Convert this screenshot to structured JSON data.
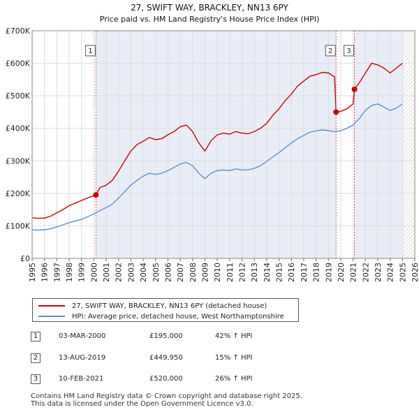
{
  "chart_data": {
    "type": "line",
    "title": "27, SWIFT WAY, BRACKLEY, NN13 6PY",
    "subtitle": "Price paid vs. HM Land Registry's House Price Index (HPI)",
    "xlim": [
      1995,
      2026
    ],
    "ylim": [
      0,
      700000
    ],
    "x_ticks": [
      "1995",
      "1996",
      "1997",
      "1998",
      "1999",
      "2000",
      "2001",
      "2002",
      "2003",
      "2004",
      "2005",
      "2006",
      "2007",
      "2008",
      "2009",
      "2010",
      "2011",
      "2012",
      "2013",
      "2014",
      "2015",
      "2016",
      "2017",
      "2018",
      "2019",
      "2020",
      "2021",
      "2022",
      "2023",
      "2024",
      "2025",
      "2026"
    ],
    "y_ticks": [
      {
        "value": 0,
        "label": "£0"
      },
      {
        "value": 100000,
        "label": "£100K"
      },
      {
        "value": 200000,
        "label": "£200K"
      },
      {
        "value": 300000,
        "label": "£300K"
      },
      {
        "value": 400000,
        "label": "£400K"
      },
      {
        "value": 500000,
        "label": "£500K"
      },
      {
        "value": 600000,
        "label": "£600K"
      },
      {
        "value": 700000,
        "label": "£700K"
      }
    ],
    "shaded_ranges": [
      [
        2000.17,
        2019.62
      ],
      [
        2021.11,
        2025.1
      ]
    ],
    "future_hatch_from": 2025.1,
    "series": [
      {
        "name": "27, SWIFT WAY, BRACKLEY, NN13 6PY (detached house)",
        "color": "#cc0000",
        "x": [
          1995.0,
          1995.5,
          1996.0,
          1996.5,
          1997.0,
          1997.5,
          1998.0,
          1998.5,
          1999.0,
          1999.5,
          2000.17,
          2000.5,
          2001.0,
          2001.5,
          2002.0,
          2002.5,
          2003.0,
          2003.5,
          2004.0,
          2004.5,
          2005.0,
          2005.5,
          2006.0,
          2006.5,
          2007.0,
          2007.5,
          2008.0,
          2008.5,
          2009.0,
          2009.5,
          2010.0,
          2010.5,
          2011.0,
          2011.5,
          2012.0,
          2012.5,
          2013.0,
          2013.5,
          2014.0,
          2014.5,
          2015.0,
          2015.5,
          2016.0,
          2016.5,
          2017.0,
          2017.5,
          2018.0,
          2018.5,
          2019.0,
          2019.5,
          2019.62,
          2020.0,
          2020.5,
          2021.0,
          2021.11,
          2021.5,
          2022.0,
          2022.5,
          2023.0,
          2023.5,
          2024.0,
          2024.5,
          2025.0
        ],
        "values": [
          125000,
          123000,
          124000,
          130000,
          140000,
          150000,
          162000,
          170000,
          178000,
          186000,
          195000,
          218000,
          225000,
          240000,
          268000,
          300000,
          330000,
          350000,
          360000,
          372000,
          365000,
          368000,
          380000,
          390000,
          405000,
          410000,
          390000,
          355000,
          330000,
          362000,
          380000,
          385000,
          382000,
          390000,
          385000,
          383000,
          390000,
          400000,
          415000,
          440000,
          460000,
          485000,
          505000,
          530000,
          545000,
          560000,
          565000,
          572000,
          570000,
          558000,
          449950,
          452000,
          460000,
          475000,
          520000,
          540000,
          570000,
          600000,
          595000,
          585000,
          570000,
          585000,
          600000
        ]
      },
      {
        "name": "HPI: Average price, detached house, West Northamptonshire",
        "color": "#5b8fc9",
        "x": [
          1995.0,
          1995.5,
          1996.0,
          1996.5,
          1997.0,
          1997.5,
          1998.0,
          1998.5,
          1999.0,
          1999.5,
          2000.0,
          2000.5,
          2001.0,
          2001.5,
          2002.0,
          2002.5,
          2003.0,
          2003.5,
          2004.0,
          2004.5,
          2005.0,
          2005.5,
          2006.0,
          2006.5,
          2007.0,
          2007.5,
          2008.0,
          2008.5,
          2009.0,
          2009.5,
          2010.0,
          2010.5,
          2011.0,
          2011.5,
          2012.0,
          2012.5,
          2013.0,
          2013.5,
          2014.0,
          2014.5,
          2015.0,
          2015.5,
          2016.0,
          2016.5,
          2017.0,
          2017.5,
          2018.0,
          2018.5,
          2019.0,
          2019.5,
          2020.0,
          2020.5,
          2021.0,
          2021.5,
          2022.0,
          2022.5,
          2023.0,
          2023.5,
          2024.0,
          2024.5,
          2025.0
        ],
        "values": [
          88000,
          87000,
          88000,
          91000,
          97000,
          103000,
          110000,
          115000,
          120000,
          128000,
          137000,
          147000,
          156000,
          167000,
          185000,
          205000,
          225000,
          240000,
          253000,
          262000,
          258000,
          262000,
          270000,
          280000,
          290000,
          295000,
          285000,
          262000,
          245000,
          262000,
          270000,
          272000,
          270000,
          275000,
          272000,
          272000,
          277000,
          285000,
          298000,
          312000,
          325000,
          340000,
          355000,
          368000,
          378000,
          388000,
          392000,
          395000,
          393000,
          390000,
          392000,
          400000,
          410000,
          430000,
          455000,
          470000,
          475000,
          465000,
          455000,
          462000,
          475000
        ]
      }
    ],
    "sale_markers": [
      {
        "label": "1",
        "x": 2000.17,
        "value": 195000
      },
      {
        "label": "2",
        "x": 2019.62,
        "value": 449950
      },
      {
        "label": "3",
        "x": 2021.11,
        "value": 520000
      }
    ]
  },
  "legend": {
    "property": "27, SWIFT WAY, BRACKLEY, NN13 6PY (detached house)",
    "hpi": "HPI: Average price, detached house, West Northamptonshire"
  },
  "sales": [
    {
      "num": "1",
      "date": "03-MAR-2000",
      "price": "£195,000",
      "hpi": "42% ↑ HPI"
    },
    {
      "num": "2",
      "date": "13-AUG-2019",
      "price": "£449,950",
      "hpi": "15% ↑ HPI"
    },
    {
      "num": "3",
      "date": "10-FEB-2021",
      "price": "£520,000",
      "hpi": "26% ↑ HPI"
    }
  ],
  "footer": {
    "line1": "Contains HM Land Registry data © Crown copyright and database right 2025.",
    "line2": "This data is licensed under the Open Government Licence v3.0."
  }
}
